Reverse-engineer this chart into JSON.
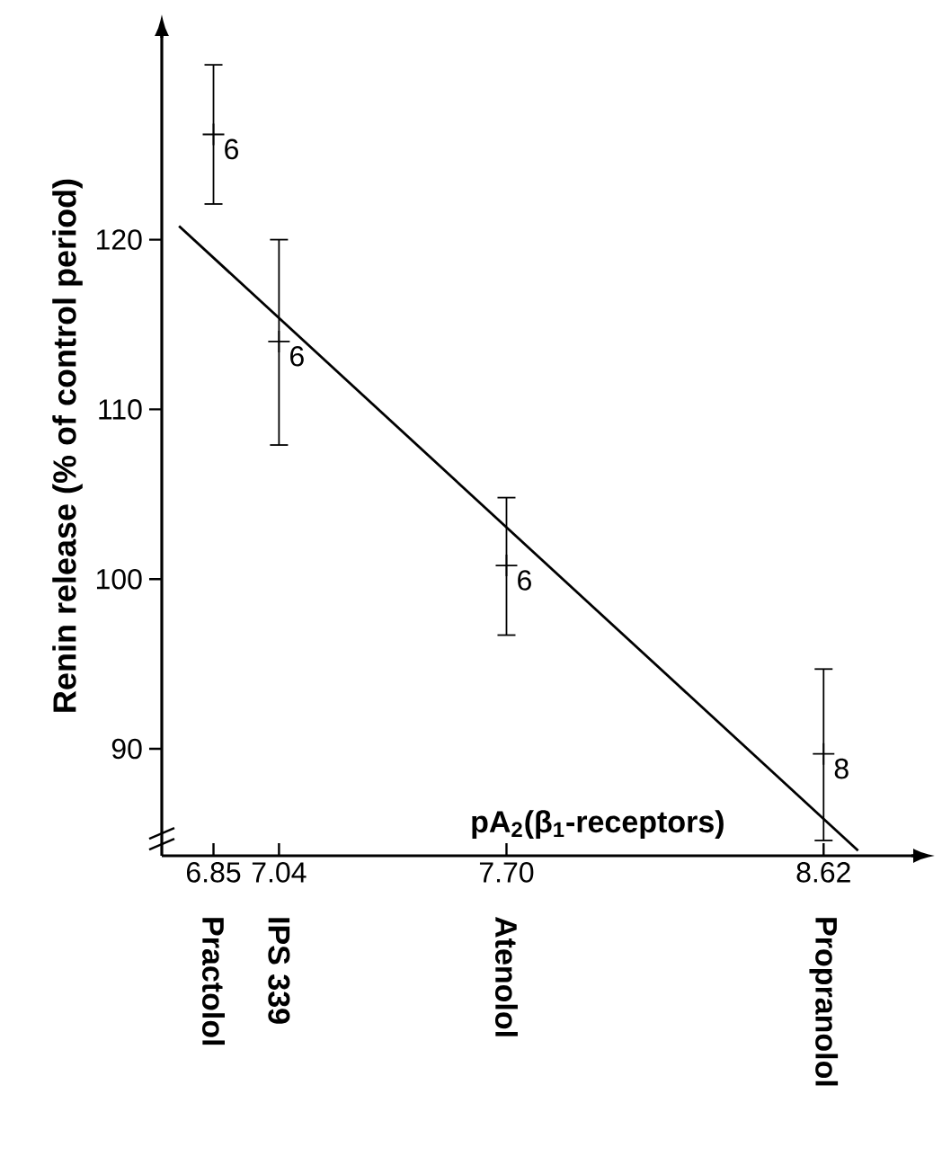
{
  "chart_data": {
    "type": "scatter",
    "xlabel": "pA$_{2}$(β$_{1}$-receptors)",
    "ylabel": "Renin release (% of control period)",
    "xlim": [
      6.7,
      8.88
    ],
    "ylim": [
      83.7,
      132
    ],
    "xticks": [
      6.85,
      7.04,
      {
        "value": 7.7,
        "label": "7.70"
      },
      8.62
    ],
    "yticks": [
      90,
      100,
      110,
      120
    ],
    "series": [
      {
        "color": "#000000",
        "x": [
          6.85,
          7.04,
          7.7,
          8.62
        ],
        "values": [
          126.2,
          114.0,
          100.8,
          89.7
        ],
        "errors": [
          [
            122.1,
            130.3
          ],
          [
            107.9,
            120.0
          ],
          [
            96.7,
            104.8
          ],
          [
            84.6,
            94.7
          ]
        ]
      },
      {
        "type": "line",
        "color": "#000000",
        "x": [
          6.75,
          8.72
        ],
        "values": [
          120.8,
          84.0
        ]
      }
    ],
    "annotations": [
      {
        "text": "6",
        "x": 6.85,
        "y": 126.2
      },
      {
        "text": "6",
        "x": 7.04,
        "y": 114.0
      },
      {
        "text": "6",
        "x": 7.7,
        "y": 100.8
      },
      {
        "text": "8",
        "x": 8.62,
        "y": 89.7
      },
      "Practolol",
      "IPS 339",
      "Atenolol",
      "Propranolol"
    ]
  }
}
